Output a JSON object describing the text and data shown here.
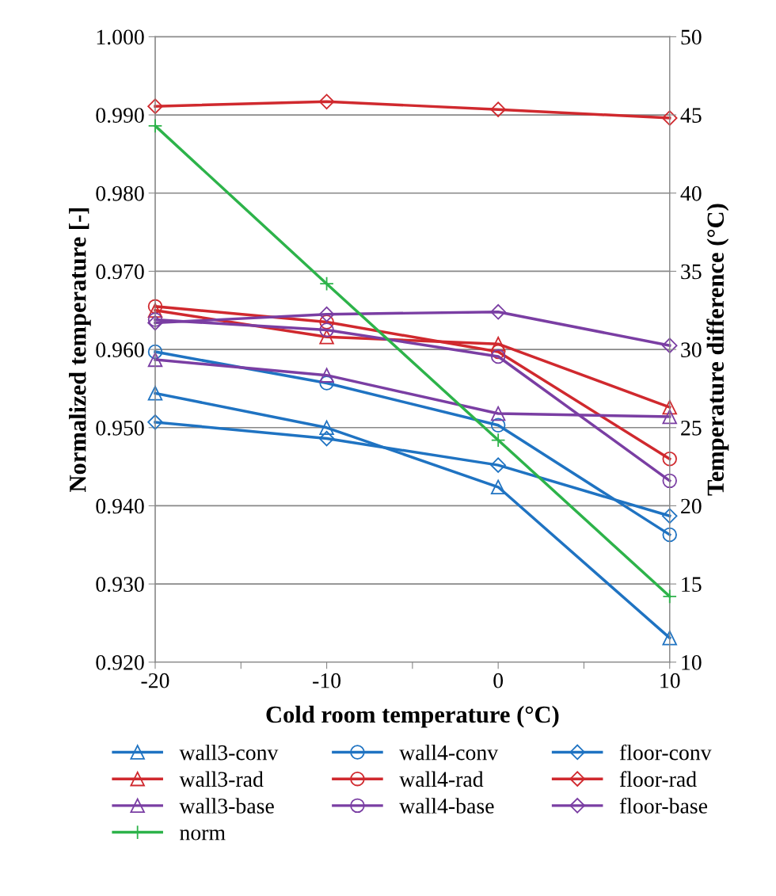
{
  "chart_data": {
    "type": "line",
    "xlabel": "Cold room temperature (°C)",
    "ylabel": "Normalized temperature [-]",
    "y2label": "Temperature difference (°C)",
    "x": [
      -20,
      -10,
      0,
      10
    ],
    "xlim": [
      -20,
      10
    ],
    "xticks": [
      -20,
      {
        "value": -15,
        "label": null
      },
      -10,
      {
        "value": -5,
        "label": null
      },
      0,
      {
        "value": 5,
        "label": null
      },
      10
    ],
    "ylim": [
      0.92,
      1.0
    ],
    "yticks": [
      {
        "value": 0.92,
        "label": "0.920"
      },
      {
        "value": 0.93,
        "label": "0.930"
      },
      {
        "value": 0.94,
        "label": "0.940"
      },
      {
        "value": 0.95,
        "label": "0.950"
      },
      {
        "value": 0.96,
        "label": "0.960"
      },
      {
        "value": 0.97,
        "label": "0.970"
      },
      {
        "value": 0.98,
        "label": "0.980"
      },
      {
        "value": 0.99,
        "label": "0.990"
      },
      {
        "value": 1.0,
        "label": "1.000"
      }
    ],
    "y2lim": [
      10,
      50
    ],
    "y2ticks": [
      10,
      15,
      20,
      25,
      30,
      35,
      40,
      45,
      50
    ],
    "grid": "y",
    "legend": "bottom",
    "line_style": "solid",
    "series": [
      {
        "name": "wall3-conv",
        "color": "#1f73c2",
        "marker": "triangle",
        "values": [
          0.9544,
          0.95,
          0.9424,
          0.9231
        ]
      },
      {
        "name": "wall4-conv",
        "color": "#1f73c2",
        "marker": "circle",
        "values": [
          0.9597,
          0.9557,
          0.9503,
          0.9363
        ]
      },
      {
        "name": "floor-conv",
        "color": "#1f73c2",
        "marker": "diamond",
        "values": [
          0.9507,
          0.9486,
          0.9452,
          0.9387
        ]
      },
      {
        "name": "wall3-rad",
        "color": "#d0292e",
        "marker": "triangle",
        "values": [
          0.965,
          0.9616,
          0.9607,
          0.9526
        ]
      },
      {
        "name": "wall4-rad",
        "color": "#d0292e",
        "marker": "circle",
        "values": [
          0.9655,
          0.9635,
          0.9597,
          0.946
        ]
      },
      {
        "name": "floor-rad",
        "color": "#d0292e",
        "marker": "diamond",
        "values": [
          0.9911,
          0.9917,
          0.9907,
          0.9896
        ]
      },
      {
        "name": "wall3-base",
        "color": "#7a3ea3",
        "marker": "triangle",
        "values": [
          0.9587,
          0.9567,
          0.9518,
          0.9514
        ]
      },
      {
        "name": "wall4-base",
        "color": "#7a3ea3",
        "marker": "circle",
        "values": [
          0.9638,
          0.9625,
          0.9591,
          0.9432
        ]
      },
      {
        "name": "floor-base",
        "color": "#7a3ea3",
        "marker": "diamond",
        "values": [
          0.9634,
          0.9645,
          0.9648,
          0.9605
        ]
      },
      {
        "name": "norm",
        "color": "#2db34a",
        "marker": "cross",
        "axis": "y2",
        "values": [
          44.3,
          34.2,
          24.2,
          14.2
        ]
      }
    ]
  }
}
